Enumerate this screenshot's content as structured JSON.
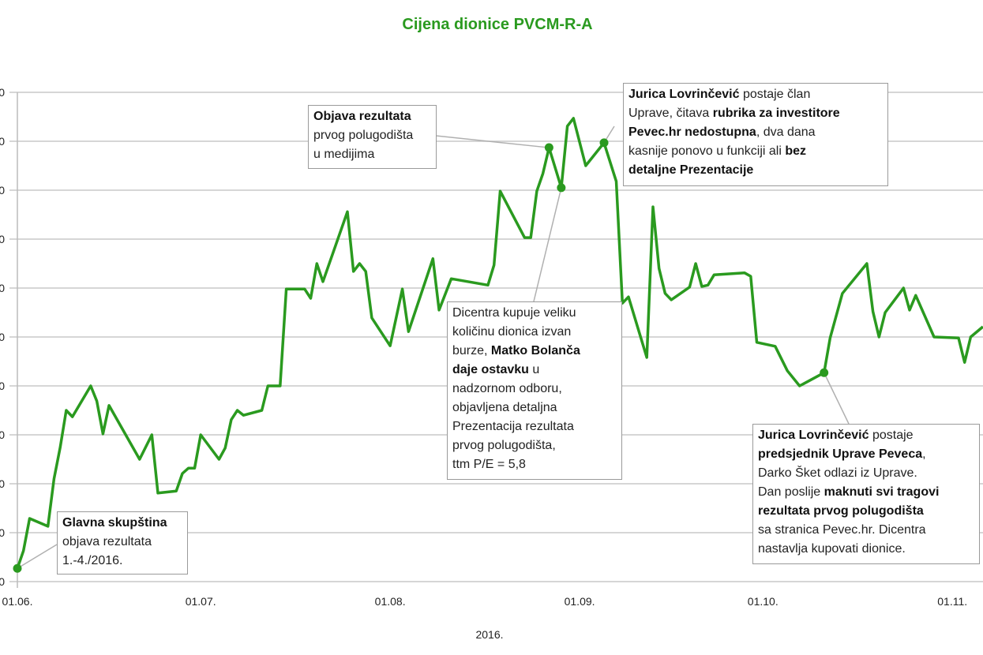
{
  "chart_data": {
    "type": "line",
    "title": "Cijena dionice PVCM-R-A",
    "title_color": "#2a9a1f",
    "xlabel": "2016.",
    "ylabel": "",
    "line_color": "#2a9a1f",
    "grid": true,
    "y_axis_note": "left tick labels cropped; values in gridline units 0-10",
    "ylim": [
      0,
      10
    ],
    "ytick_labels": [
      "0",
      "0",
      "0",
      "0",
      "0",
      "0",
      "0",
      "0",
      "0",
      "0",
      "0"
    ],
    "xlim": [
      "2016-06-01",
      "2016-11-06"
    ],
    "xticks": [
      {
        "date": "2016-06-01",
        "label": "01.06."
      },
      {
        "date": "2016-07-01",
        "label": "01.07."
      },
      {
        "date": "2016-08-01",
        "label": "01.08."
      },
      {
        "date": "2016-09-01",
        "label": "01.09."
      },
      {
        "date": "2016-10-01",
        "label": "01.10."
      },
      {
        "date": "2016-11-01",
        "label": "01.11."
      }
    ],
    "series": [
      {
        "points": [
          [
            "2016-06-01",
            0.27
          ],
          [
            "2016-06-02",
            0.63
          ],
          [
            "2016-06-03",
            1.29
          ],
          [
            "2016-06-06",
            1.13
          ],
          [
            "2016-06-07",
            2.1
          ],
          [
            "2016-06-08",
            2.74
          ],
          [
            "2016-06-09",
            3.5
          ],
          [
            "2016-06-10",
            3.37
          ],
          [
            "2016-06-13",
            4.0
          ],
          [
            "2016-06-14",
            3.69
          ],
          [
            "2016-06-15",
            3.02
          ],
          [
            "2016-06-16",
            3.6
          ],
          [
            "2016-06-21",
            2.5
          ],
          [
            "2016-06-23",
            3.0
          ],
          [
            "2016-06-24",
            1.81
          ],
          [
            "2016-06-27",
            1.85
          ],
          [
            "2016-06-28",
            2.21
          ],
          [
            "2016-06-29",
            2.32
          ],
          [
            "2016-06-30",
            2.32
          ],
          [
            "2016-07-01",
            3.0
          ],
          [
            "2016-07-04",
            2.5
          ],
          [
            "2016-07-05",
            2.73
          ],
          [
            "2016-07-06",
            3.31
          ],
          [
            "2016-07-07",
            3.5
          ],
          [
            "2016-07-08",
            3.4
          ],
          [
            "2016-07-11",
            3.5
          ],
          [
            "2016-07-12",
            4.0
          ],
          [
            "2016-07-14",
            4.0
          ],
          [
            "2016-07-15",
            5.98
          ],
          [
            "2016-07-18",
            5.98
          ],
          [
            "2016-07-19",
            5.79
          ],
          [
            "2016-07-20",
            6.5
          ],
          [
            "2016-07-21",
            6.13
          ],
          [
            "2016-07-25",
            7.56
          ],
          [
            "2016-07-26",
            6.34
          ],
          [
            "2016-07-27",
            6.5
          ],
          [
            "2016-07-28",
            6.34
          ],
          [
            "2016-07-29",
            5.39
          ],
          [
            "2016-08-01",
            4.82
          ],
          [
            "2016-08-03",
            5.98
          ],
          [
            "2016-08-04",
            5.11
          ],
          [
            "2016-08-08",
            6.6
          ],
          [
            "2016-08-09",
            5.55
          ],
          [
            "2016-08-11",
            6.19
          ],
          [
            "2016-08-17",
            6.06
          ],
          [
            "2016-08-18",
            6.47
          ],
          [
            "2016-08-19",
            7.98
          ],
          [
            "2016-08-23",
            7.03
          ],
          [
            "2016-08-24",
            7.03
          ],
          [
            "2016-08-25",
            7.98
          ],
          [
            "2016-08-26",
            8.34
          ],
          [
            "2016-08-27",
            8.87
          ],
          [
            "2016-08-29",
            8.05
          ],
          [
            "2016-08-30",
            9.31
          ],
          [
            "2016-08-31",
            9.47
          ],
          [
            "2016-09-02",
            8.5
          ],
          [
            "2016-09-05",
            8.97
          ],
          [
            "2016-09-07",
            8.18
          ],
          [
            "2016-09-08",
            5.69
          ],
          [
            "2016-09-09",
            5.82
          ],
          [
            "2016-09-12",
            4.58
          ],
          [
            "2016-09-13",
            7.66
          ],
          [
            "2016-09-14",
            6.4
          ],
          [
            "2016-09-15",
            5.89
          ],
          [
            "2016-09-16",
            5.76
          ],
          [
            "2016-09-19",
            6.02
          ],
          [
            "2016-09-20",
            6.5
          ],
          [
            "2016-09-21",
            6.03
          ],
          [
            "2016-09-22",
            6.06
          ],
          [
            "2016-09-23",
            6.27
          ],
          [
            "2016-09-28",
            6.31
          ],
          [
            "2016-09-29",
            6.24
          ],
          [
            "2016-09-30",
            4.89
          ],
          [
            "2016-10-03",
            4.81
          ],
          [
            "2016-10-05",
            4.31
          ],
          [
            "2016-10-07",
            4.0
          ],
          [
            "2016-10-11",
            4.27
          ],
          [
            "2016-10-12",
            4.98
          ],
          [
            "2016-10-14",
            5.89
          ],
          [
            "2016-10-18",
            6.5
          ],
          [
            "2016-10-19",
            5.52
          ],
          [
            "2016-10-20",
            5.0
          ],
          [
            "2016-10-21",
            5.5
          ],
          [
            "2016-10-24",
            6.0
          ],
          [
            "2016-10-25",
            5.55
          ],
          [
            "2016-10-26",
            5.85
          ],
          [
            "2016-10-29",
            5.0
          ],
          [
            "2016-11-02",
            4.98
          ],
          [
            "2016-11-03",
            4.48
          ],
          [
            "2016-11-04",
            5.0
          ],
          [
            "2016-11-06",
            5.21
          ]
        ]
      }
    ],
    "annotations": [
      {
        "date": "2016-06-01",
        "value": 0.27,
        "lines": [
          [
            {
              "t": "Glavna skupština",
              "b": true
            }
          ],
          [
            {
              "t": "objava rezultata",
              "b": false
            }
          ],
          [
            {
              "t": "1.-4./2016.",
              "b": false
            }
          ]
        ]
      },
      {
        "date": "2016-08-27",
        "value": 8.87,
        "lines": [
          [
            {
              "t": "Objava rezultata",
              "b": true
            }
          ],
          [
            {
              "t": "prvog polugodišta",
              "b": false
            }
          ],
          [
            {
              "t": "u medijima",
              "b": false
            }
          ]
        ]
      },
      {
        "date": "2016-09-05",
        "value": 8.97,
        "lines": [
          [
            {
              "t": "Jurica Lovrinčević",
              "b": true
            },
            {
              "t": " postaje član",
              "b": false
            }
          ],
          [
            {
              "t": "Uprave, čitava ",
              "b": false
            },
            {
              "t": "rubrika za investitore",
              "b": true
            }
          ],
          [
            {
              "t": "Pevec.hr nedostupna",
              "b": true
            },
            {
              "t": ", dva dana",
              "b": false
            }
          ],
          [
            {
              "t": "kasnije ponovo u funkciji ali ",
              "b": false
            },
            {
              "t": "bez",
              "b": true
            }
          ],
          [
            {
              "t": "detaljne Prezentacije",
              "b": true
            }
          ]
        ]
      },
      {
        "date": "2016-08-29",
        "value": 8.05,
        "lines": [
          [
            {
              "t": "Dicentra kupuje veliku",
              "b": false
            }
          ],
          [
            {
              "t": "količinu dionica izvan",
              "b": false
            }
          ],
          [
            {
              "t": "burze, ",
              "b": false
            },
            {
              "t": "Matko Bolanča",
              "b": true
            }
          ],
          [
            {
              "t": "daje ostavku",
              "b": true
            },
            {
              "t": " u",
              "b": false
            }
          ],
          [
            {
              "t": "nadzornom odboru,",
              "b": false
            }
          ],
          [
            {
              "t": "objavljena detaljna",
              "b": false
            }
          ],
          [
            {
              "t": "Prezentacija rezultata",
              "b": false
            }
          ],
          [
            {
              "t": "prvog polugodišta,",
              "b": false
            }
          ],
          [
            {
              "t": "ttm P/E = 5,8",
              "b": false
            }
          ]
        ]
      },
      {
        "date": "2016-10-11",
        "value": 4.27,
        "lines": [
          [
            {
              "t": "Jurica Lovrinčević",
              "b": true
            },
            {
              "t": " postaje",
              "b": false
            }
          ],
          [
            {
              "t": "predsjednik Uprave Peveca",
              "b": true
            },
            {
              "t": ",",
              "b": false
            }
          ],
          [
            {
              "t": "Darko Šket odlazi iz Uprave.",
              "b": false
            }
          ],
          [
            {
              "t": "Dan poslije ",
              "b": false
            },
            {
              "t": "maknuti svi tragovi",
              "b": true
            }
          ],
          [
            {
              "t": "rezultata prvog polugodišta",
              "b": true
            }
          ],
          [
            {
              "t": "sa stranica Pevec.hr. Dicentra",
              "b": false
            }
          ],
          [
            {
              "t": "nastavlja kupovati dionice.",
              "b": false
            }
          ]
        ]
      }
    ]
  }
}
